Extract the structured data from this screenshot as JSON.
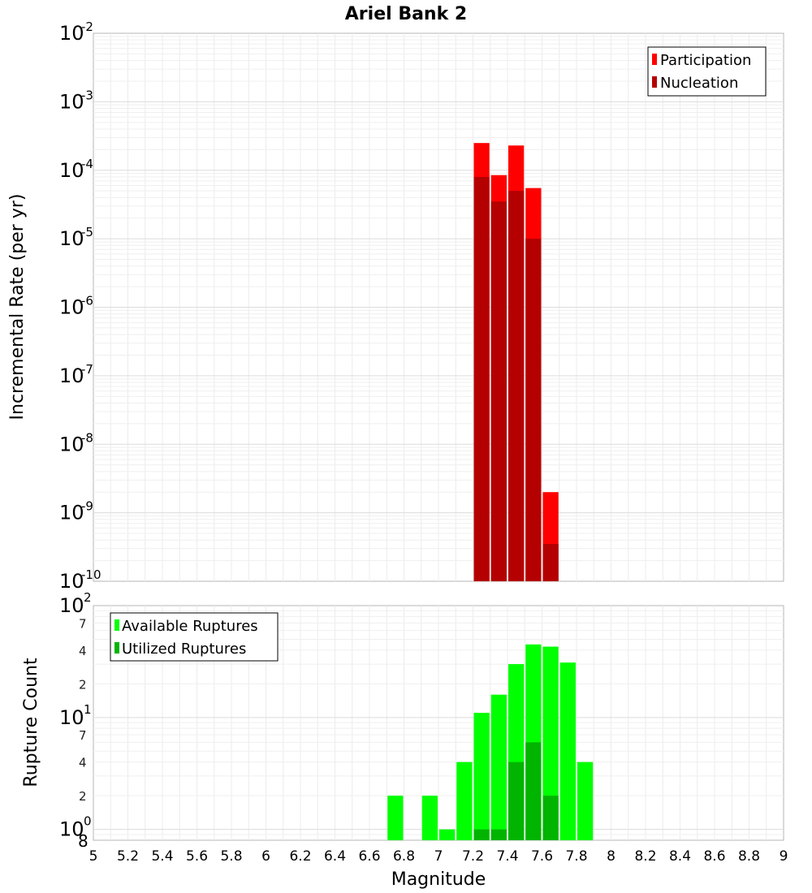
{
  "chart_data": [
    {
      "type": "bar",
      "title": "Ariel Bank 2",
      "xlabel": "Magnitude",
      "ylabel": "Incremental Rate (per yr)",
      "yscale": "log",
      "ylim": [
        1e-10,
        0.01
      ],
      "xlim": [
        5,
        9
      ],
      "grid": true,
      "legend_position": "top-right",
      "bin_width": 0.1,
      "series": [
        {
          "name": "Participation",
          "color": "#ff0000",
          "x": [
            7.25,
            7.35,
            7.45,
            7.55,
            7.65
          ],
          "values": [
            0.00025,
            8.5e-05,
            0.00023,
            5.5e-05,
            2e-09
          ]
        },
        {
          "name": "Nucleation",
          "color": "#b40000",
          "x": [
            7.25,
            7.35,
            7.45,
            7.55,
            7.65
          ],
          "values": [
            8e-05,
            3.5e-05,
            5e-05,
            1e-05,
            3.5e-10
          ]
        }
      ]
    },
    {
      "type": "bar",
      "xlabel": "Magnitude",
      "ylabel": "Rupture Count",
      "yscale": "log",
      "ylim": [
        0.8,
        100
      ],
      "xlim": [
        5,
        9
      ],
      "grid": true,
      "legend_position": "top-left",
      "bin_width": 0.1,
      "series": [
        {
          "name": "Available Ruptures",
          "color": "#00ff00",
          "x": [
            6.75,
            6.95,
            7.05,
            7.15,
            7.25,
            7.35,
            7.45,
            7.55,
            7.65,
            7.75,
            7.85
          ],
          "values": [
            2,
            2,
            1,
            4,
            11,
            16,
            30,
            45,
            43,
            31,
            4
          ]
        },
        {
          "name": "Utilized Ruptures",
          "color": "#00b400",
          "x": [
            7.25,
            7.35,
            7.45,
            7.55,
            7.65
          ],
          "values": [
            1,
            1,
            4,
            6,
            2
          ]
        }
      ]
    }
  ],
  "axes": {
    "x_ticks": [
      "5",
      "5.2",
      "5.4",
      "5.6",
      "5.8",
      "6",
      "6.2",
      "6.4",
      "6.6",
      "6.8",
      "7",
      "7.2",
      "7.4",
      "7.6",
      "7.8",
      "8",
      "8.2",
      "8.4",
      "8.6",
      "8.8",
      "9"
    ],
    "top_y_ticks": [
      {
        "base": "10",
        "exp": "-10",
        "value": 1e-10
      },
      {
        "base": "10",
        "exp": "-9",
        "value": 1e-09
      },
      {
        "base": "10",
        "exp": "-8",
        "value": 1e-08
      },
      {
        "base": "10",
        "exp": "-7",
        "value": 1e-07
      },
      {
        "base": "10",
        "exp": "-6",
        "value": 1e-06
      },
      {
        "base": "10",
        "exp": "-5",
        "value": 1e-05
      },
      {
        "base": "10",
        "exp": "-4",
        "value": 0.0001
      },
      {
        "base": "10",
        "exp": "-3",
        "value": 0.001
      },
      {
        "base": "10",
        "exp": "-2",
        "value": 0.01
      }
    ],
    "bottom_y_major": [
      {
        "base": "10",
        "exp": "0",
        "value": 1
      },
      {
        "base": "10",
        "exp": "1",
        "value": 10
      },
      {
        "base": "10",
        "exp": "2",
        "value": 100
      }
    ],
    "bottom_y_minor": [
      {
        "label": "8",
        "value": 0.8
      },
      {
        "label": "2",
        "value": 2
      },
      {
        "label": "4",
        "value": 4
      },
      {
        "label": "7",
        "value": 7
      },
      {
        "label": "2",
        "value": 20
      },
      {
        "label": "4",
        "value": 40
      },
      {
        "label": "7",
        "value": 70
      }
    ]
  }
}
